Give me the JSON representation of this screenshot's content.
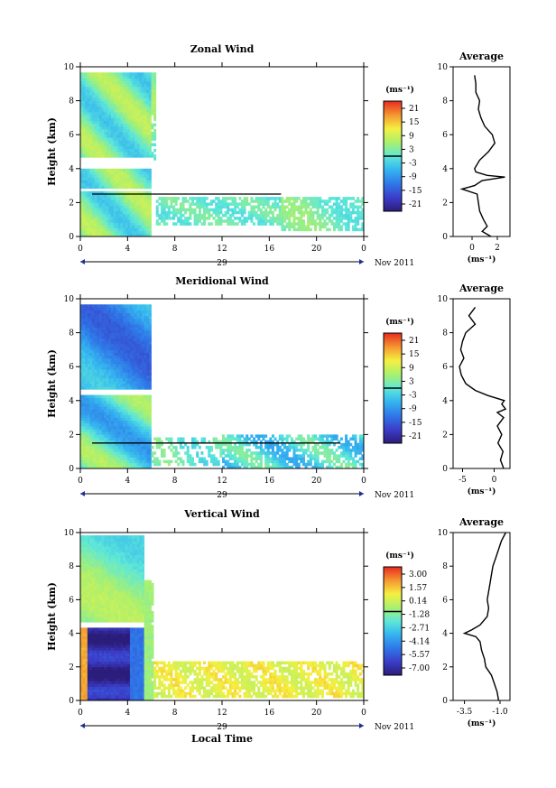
{
  "chart_data": [
    {
      "type": "heatmap",
      "title": "Zonal Wind",
      "ylabel": "Height (km)",
      "xlabel": "",
      "ylim": [
        0,
        10
      ],
      "xlim": [
        0,
        24
      ],
      "y_ticks": [
        "0",
        "2",
        "4",
        "6",
        "8",
        "10"
      ],
      "x_ticks": [
        "0",
        "4",
        "8",
        "12",
        "16",
        "20",
        "0"
      ],
      "date_label": "29",
      "month_label": "Nov 2011",
      "colorbar": {
        "unit": "(ms⁻¹)",
        "tick_labels": [
          "21",
          "15",
          "9",
          "3",
          "-3",
          "-9",
          "-15",
          "-21"
        ],
        "range": [
          -24,
          24
        ],
        "zero_line": 0
      },
      "average_profile": {
        "title": "Average",
        "xlabel": "(ms⁻¹)",
        "x_ticks": [
          "0",
          "2"
        ],
        "xlim": [
          -1.5,
          3
        ],
        "y_ticks": [
          "0",
          "2",
          "4",
          "6",
          "8",
          "10"
        ],
        "heights": [
          0,
          0.3,
          0.6,
          1,
          1.5,
          2,
          2.5,
          2.8,
          3,
          3.3,
          3.5,
          3.6,
          3.8,
          4,
          4.5,
          5,
          5.5,
          6,
          6.5,
          7,
          7.5,
          8,
          8.5,
          9,
          9.5
        ],
        "values": [
          1.5,
          0.8,
          1.2,
          0.9,
          0.6,
          0.5,
          0.4,
          -0.8,
          0.2,
          0.8,
          2.6,
          1.2,
          0.3,
          0.2,
          0.6,
          1.3,
          1.8,
          1.6,
          1.0,
          0.7,
          0.5,
          0.6,
          0.3,
          0.3,
          0.2
        ]
      }
    },
    {
      "type": "heatmap",
      "title": "Meridional Wind",
      "ylabel": "Height (km)",
      "xlabel": "",
      "ylim": [
        0,
        10
      ],
      "xlim": [
        0,
        24
      ],
      "y_ticks": [
        "0",
        "2",
        "4",
        "6",
        "8",
        "10"
      ],
      "x_ticks": [
        "0",
        "4",
        "8",
        "12",
        "16",
        "20",
        "0"
      ],
      "date_label": "29",
      "month_label": "Nov 2011",
      "colorbar": {
        "unit": "(ms⁻¹)",
        "tick_labels": [
          "21",
          "15",
          "9",
          "3",
          "-3",
          "-9",
          "-15",
          "-21"
        ],
        "range": [
          -24,
          24
        ],
        "zero_line": 0
      },
      "average_profile": {
        "title": "Average",
        "xlabel": "(ms⁻¹)",
        "x_ticks": [
          "-5",
          "0"
        ],
        "xlim": [
          -6.5,
          2.5
        ],
        "y_ticks": [
          "0",
          "2",
          "4",
          "6",
          "8",
          "10"
        ],
        "heights": [
          0,
          0.5,
          1,
          1.5,
          2,
          2.5,
          3,
          3.3,
          3.5,
          3.8,
          4,
          4.3,
          4.6,
          5,
          5.5,
          6,
          6.5,
          7,
          7.5,
          8,
          8.5,
          9,
          9.5
        ],
        "values": [
          1.5,
          1.0,
          1.4,
          0.6,
          1.2,
          0.5,
          1.5,
          0.5,
          1.8,
          1.2,
          1.6,
          -1.0,
          -3.0,
          -4.5,
          -5.2,
          -5.5,
          -4.8,
          -5.3,
          -5.0,
          -4.5,
          -3.0,
          -4.0,
          -3.0
        ]
      }
    },
    {
      "type": "heatmap",
      "title": "Vertical Wind",
      "ylabel": "Height (km)",
      "xlabel": "Local Time",
      "ylim": [
        0,
        10
      ],
      "xlim": [
        0,
        24
      ],
      "y_ticks": [
        "0",
        "2",
        "4",
        "6",
        "8",
        "10"
      ],
      "x_ticks": [
        "0",
        "4",
        "8",
        "12",
        "16",
        "20",
        "0"
      ],
      "date_label": "29",
      "month_label": "Nov 2011",
      "colorbar": {
        "unit": "(ms⁻¹)",
        "tick_labels": [
          "3.00",
          "1.57",
          "0.14",
          "-1.28",
          "-2.71",
          "-4.14",
          "-5.57",
          "-7.00"
        ],
        "range": [
          -7.7,
          3.7
        ],
        "zero_line": -1.0
      },
      "average_profile": {
        "title": "Average",
        "xlabel": "(ms⁻¹)",
        "x_ticks": [
          "-3.5",
          "-1.0"
        ],
        "xlim": [
          -4.3,
          -0.3
        ],
        "y_ticks": [
          "0",
          "2",
          "4",
          "6",
          "8",
          "10"
        ],
        "heights": [
          0,
          0.5,
          1,
          1.5,
          2,
          2.5,
          3,
          3.5,
          3.8,
          4,
          4.2,
          4.5,
          5,
          5.5,
          6,
          6.5,
          7,
          7.5,
          8,
          8.5,
          9,
          9.5,
          10
        ],
        "values": [
          -1.1,
          -1.2,
          -1.4,
          -1.6,
          -2.0,
          -2.1,
          -2.3,
          -2.4,
          -2.7,
          -3.5,
          -3.0,
          -2.4,
          -1.9,
          -1.8,
          -1.9,
          -1.8,
          -1.7,
          -1.6,
          -1.5,
          -1.3,
          -1.1,
          -0.9,
          -0.6
        ]
      }
    }
  ]
}
